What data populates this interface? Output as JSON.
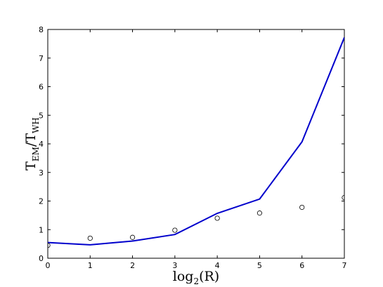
{
  "chart_data": {
    "type": "line",
    "x": [
      0,
      1,
      2,
      3,
      4,
      5,
      6,
      7
    ],
    "series": [
      {
        "color": "#0000cc",
        "style": "line",
        "values": [
          0.55,
          0.47,
          0.6,
          0.83,
          1.57,
          2.07,
          4.07,
          7.72
        ]
      },
      {
        "color": "#000000",
        "style": "markers",
        "values": [
          0.45,
          0.7,
          0.73,
          0.98,
          1.4,
          1.58,
          1.78,
          2.12
        ]
      }
    ],
    "xlim": [
      0,
      7
    ],
    "xticks": [
      0,
      1,
      2,
      3,
      4,
      5,
      6,
      7
    ],
    "ylim": [
      0,
      8
    ],
    "yticks": [
      0,
      1,
      2,
      3,
      4,
      5,
      6,
      7,
      8
    ],
    "xlabel": [
      {
        "text": "log"
      },
      {
        "sub": "2"
      },
      {
        "text": "(R)"
      }
    ],
    "ylabel": [
      {
        "text": "T"
      },
      {
        "sub": "EM"
      },
      {
        "text": "/T"
      },
      {
        "sub": "WH"
      }
    ],
    "grid": false
  }
}
